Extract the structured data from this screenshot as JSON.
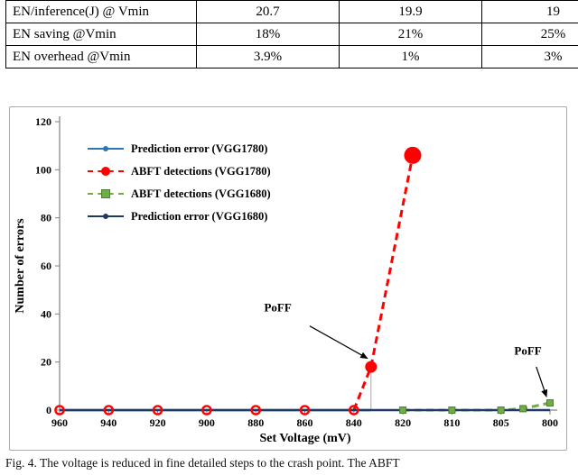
{
  "table": {
    "rows": [
      {
        "label": "EN/inference(J) @ Vmin",
        "values": [
          "20.7",
          "19.9",
          "19"
        ]
      },
      {
        "label": "EN saving @Vmin",
        "values": [
          "18%",
          "21%",
          "25%"
        ]
      },
      {
        "label": "EN overhead @Vmin",
        "values": [
          "3.9%",
          "1%",
          "3%"
        ]
      }
    ]
  },
  "chart_data": {
    "type": "line",
    "title": "",
    "xlabel": "Set Voltage (mV)",
    "ylabel": "Number of errors",
    "ylim": [
      0,
      120
    ],
    "yticks": [
      0,
      20,
      40,
      60,
      80,
      100,
      120
    ],
    "categories": [
      "960",
      "940",
      "920",
      "900",
      "880",
      "860",
      "840",
      "820",
      "810",
      "805",
      "800"
    ],
    "grid": false,
    "legend_position": "upper-left",
    "series": [
      {
        "name": "Prediction error (VGG1780)",
        "color": "#2E75B6",
        "style": "solid",
        "marker": "none",
        "line_start": 0,
        "points": [
          [
            0,
            0
          ],
          [
            1,
            0
          ],
          [
            2,
            0
          ],
          [
            3,
            0
          ],
          [
            4,
            0
          ],
          [
            5,
            0
          ],
          [
            6,
            0
          ],
          [
            6.35,
            0
          ]
        ]
      },
      {
        "name": "ABFT detections (VGG1780)",
        "color": "#FF0000",
        "style": "dashed",
        "marker": "circle",
        "line_start": 6,
        "points": [
          [
            0,
            0
          ],
          [
            1,
            0
          ],
          [
            2,
            0
          ],
          [
            3,
            0
          ],
          [
            4,
            0
          ],
          [
            5,
            0
          ],
          [
            6,
            0
          ],
          [
            6.35,
            18
          ],
          [
            7.2,
            106
          ]
        ]
      },
      {
        "name": "ABFT detections (VGG1680)",
        "color": "#70AD47",
        "style": "dashed",
        "marker": "square",
        "line_start": 0,
        "points": [
          [
            7,
            0
          ],
          [
            8,
            0
          ],
          [
            9,
            0
          ],
          [
            9.45,
            0.6
          ],
          [
            10,
            3
          ]
        ]
      },
      {
        "name": "Prediction error (VGG1680)",
        "color": "#1F3864",
        "style": "solid",
        "marker": "none",
        "line_start": 0,
        "points": [
          [
            0,
            0
          ],
          [
            1,
            0
          ],
          [
            2,
            0
          ],
          [
            3,
            0
          ],
          [
            4,
            0
          ],
          [
            5,
            0
          ],
          [
            6,
            0
          ],
          [
            7,
            0
          ],
          [
            8,
            0
          ],
          [
            9,
            0
          ],
          [
            10,
            0
          ]
        ]
      }
    ],
    "annotations": [
      {
        "text": "PoFF",
        "text_at": [
          4.45,
          41
        ],
        "arrow_from": [
          5.1,
          35
        ],
        "arrow_to": [
          6.28,
          21.5
        ]
      },
      {
        "text": "PoFF",
        "text_at": [
          9.55,
          23
        ],
        "arrow_from": [
          9.72,
          18
        ],
        "arrow_to": [
          9.93,
          5.5
        ]
      }
    ],
    "droplines": [
      {
        "x": 6.35,
        "from": 18,
        "to": 0
      }
    ]
  },
  "caption": {
    "text": "Fig. 4. The voltage is reduced in fine detailed steps to the crash point. The ABFT"
  }
}
